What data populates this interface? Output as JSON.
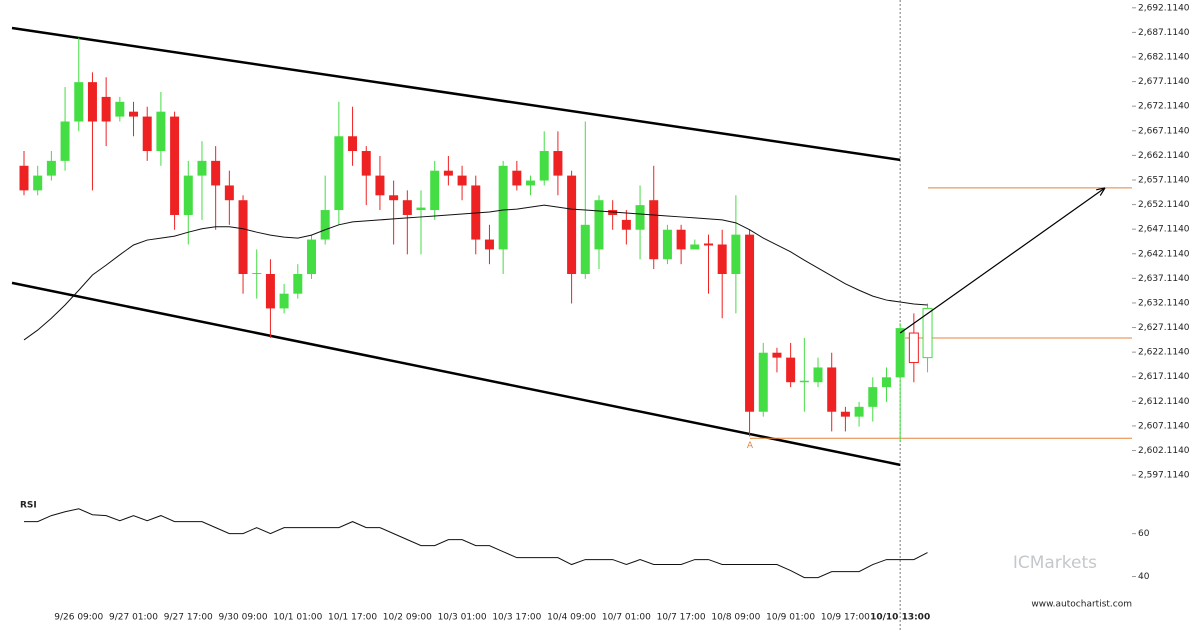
{
  "chart_data": [
    {
      "type": "candlestick",
      "categories": [
        null,
        null,
        null,
        null,
        "9/26 09:00",
        null,
        null,
        null,
        "9/27 01:00",
        null,
        null,
        null,
        "9/27 17:00",
        null,
        null,
        null,
        "9/30 09:00",
        null,
        null,
        null,
        "10/1 01:00",
        null,
        null,
        null,
        "10/1 17:00",
        null,
        null,
        null,
        "10/2 09:00",
        null,
        null,
        null,
        "10/3 01:00",
        null,
        null,
        null,
        "10/3 17:00",
        null,
        null,
        null,
        "10/4 09:00",
        null,
        null,
        null,
        "10/7 01:00",
        null,
        null,
        null,
        "10/7 17:00",
        null,
        null,
        null,
        "10/8 09:00",
        null,
        null,
        null,
        "10/9 01:00",
        null,
        null,
        null,
        "10/9 17:00",
        null,
        null,
        null,
        "10/10 13:00",
        null,
        null
      ],
      "open": [
        2660,
        2655,
        2658,
        2661,
        2669,
        2677,
        2674,
        2670,
        2671,
        2670,
        2663,
        2670,
        2650,
        2658,
        2661,
        2656,
        2653,
        2638,
        2638,
        2631,
        2634,
        2638,
        2645,
        2651,
        2666,
        2663,
        2658,
        2654,
        2653,
        2651,
        2651,
        2659,
        2658,
        2656,
        2645,
        2643,
        2659,
        2656,
        2657,
        2663,
        2658,
        2638,
        2643,
        2651,
        2649,
        2647,
        2653,
        2641,
        2647,
        2643,
        2644.2,
        2644,
        2638,
        2646,
        2610,
        2622,
        2621,
        2616,
        2616,
        2619,
        2610,
        2609,
        2611,
        2615,
        2617,
        2626,
        2621
      ],
      "high": [
        2663,
        2660,
        2663,
        2676,
        2686,
        2679,
        2678,
        2674,
        2673,
        2672,
        2675,
        2671,
        2661,
        2665,
        2664,
        2659,
        2654,
        2643,
        2641,
        2636,
        2640,
        2646,
        2658,
        2673,
        2672,
        2664,
        2662,
        2657,
        2655,
        2655,
        2661,
        2662,
        2660,
        2658,
        2648,
        2661,
        2661,
        2658,
        2667,
        2667,
        2659,
        2669,
        2654,
        2653,
        2651,
        2656,
        2660,
        2648,
        2648,
        2645,
        2646,
        2647,
        2654,
        2647,
        2624,
        2623,
        2624,
        2625,
        2621,
        2622,
        2611,
        2612,
        2617,
        2619,
        2628,
        2630,
        2632
      ],
      "low": [
        2654,
        2654,
        2657,
        2659,
        2667,
        2655,
        2664,
        2669,
        2666,
        2661,
        2660,
        2647,
        2644,
        2649,
        2647,
        2648,
        2634,
        2633,
        2625,
        2630,
        2633,
        2637,
        2644,
        2648,
        2660,
        2652,
        2651,
        2644,
        2642,
        2642,
        2649,
        2656,
        2653,
        2642,
        2640,
        2638,
        2655,
        2654,
        2656,
        2654,
        2632,
        2637,
        2639,
        2647,
        2644,
        2641,
        2639,
        2640,
        2640,
        2643,
        2634,
        2629,
        2630,
        2605,
        2609,
        2618,
        2615,
        2610,
        2615,
        2606,
        2606,
        2607,
        2608,
        2612,
        2604,
        2616,
        2618
      ],
      "close": [
        2655,
        2658,
        2661,
        2669,
        2677,
        2669,
        2669,
        2673,
        2670,
        2663,
        2671,
        2650,
        2658,
        2661,
        2656,
        2653,
        2638,
        2638.2,
        2631,
        2634,
        2638,
        2645,
        2651,
        2666,
        2663,
        2658,
        2654,
        2653,
        2650,
        2651.5,
        2659,
        2658,
        2656,
        2645,
        2643,
        2660,
        2656,
        2657,
        2663,
        2658,
        2638,
        2648,
        2653,
        2650,
        2647,
        2652,
        2641,
        2647,
        2643,
        2644,
        2643.8,
        2638,
        2646,
        2610,
        2622,
        2621,
        2616,
        2616.3,
        2619,
        2610,
        2609,
        2611,
        2615,
        2617,
        2627,
        2620,
        2631
      ],
      "ma": [
        2624.6,
        2626.6,
        2629.0,
        2631.7,
        2634.7,
        2637.8,
        2639.8,
        2641.9,
        2643.9,
        2644.9,
        2645.3,
        2645.7,
        2646.5,
        2647.2,
        2647.6,
        2647.6,
        2647.2,
        2646.5,
        2645.9,
        2645.5,
        2645.3,
        2645.9,
        2647.0,
        2648.0,
        2648.6,
        2648.8,
        2649.0,
        2649.2,
        2649.4,
        2649.6,
        2649.8,
        2650.0,
        2650.2,
        2650.4,
        2650.6,
        2651.0,
        2651.2,
        2651.6,
        2652.0,
        2651.6,
        2651.2,
        2651.0,
        2650.8,
        2650.6,
        2650.4,
        2650.2,
        2650.0,
        2649.8,
        2649.6,
        2649.4,
        2649.2,
        2649.0,
        2648.4,
        2647.0,
        2645.3,
        2643.9,
        2642.5,
        2640.8,
        2639.2,
        2637.6,
        2636.0,
        2634.7,
        2633.5,
        2632.7,
        2632.3,
        2631.9,
        2631.7
      ],
      "up_color": "#44dd44",
      "down_color": "#ee2222",
      "ma_color": "#111111",
      "level_color": "#e8833a",
      "channel": {
        "upper": [
          2688.0,
          2661.2
        ],
        "lower": [
          2636.2,
          2599.2
        ]
      },
      "levels": [
        2655.5,
        2625.0,
        2604.6
      ],
      "arrow": [
        2626.0,
        2655.5
      ],
      "marker": "A",
      "ylim": [
        2594.7,
        2693.7
      ],
      "yticks": [
        {
          "value": 2597.114,
          "label": "2,597.1140"
        },
        {
          "value": 2602.114,
          "label": "2,602.1140"
        },
        {
          "value": 2607.114,
          "label": "2,607.1140"
        },
        {
          "value": 2612.114,
          "label": "2,612.1140"
        },
        {
          "value": 2617.114,
          "label": "2,617.1140"
        },
        {
          "value": 2622.114,
          "label": "2,622.1140"
        },
        {
          "value": 2627.114,
          "label": "2,627.1140"
        },
        {
          "value": 2632.114,
          "label": "2,632.1140"
        },
        {
          "value": 2637.114,
          "label": "2,637.1140"
        },
        {
          "value": 2642.114,
          "label": "2,642.1140"
        },
        {
          "value": 2647.114,
          "label": "2,647.1140"
        },
        {
          "value": 2652.114,
          "label": "2,652.1140"
        },
        {
          "value": 2657.114,
          "label": "2,657.1140"
        },
        {
          "value": 2662.114,
          "label": "2,662.1140"
        },
        {
          "value": 2667.114,
          "label": "2,667.1140"
        },
        {
          "value": 2672.114,
          "label": "2,672.1140"
        },
        {
          "value": 2677.114,
          "label": "2,677.1140"
        },
        {
          "value": 2682.114,
          "label": "2,682.1140"
        },
        {
          "value": 2687.114,
          "label": "2,687.1140"
        },
        {
          "value": 2692.114,
          "label": "2,692.1140"
        }
      ],
      "watermark": "ICMarkets",
      "source": "www.autochartist.com"
    },
    {
      "type": "line",
      "title": "RSI",
      "values": [
        65.6,
        65.6,
        68.4,
        70.2,
        71.6,
        68.8,
        68.4,
        66.0,
        68.4,
        66.0,
        68.4,
        65.6,
        65.6,
        65.6,
        62.8,
        60,
        60,
        62.8,
        60,
        62.8,
        62.8,
        62.8,
        62.8,
        62.8,
        65.6,
        62.8,
        62.8,
        60,
        57.2,
        54.4,
        54.4,
        57.2,
        57.2,
        54.4,
        54.4,
        51.6,
        48.8,
        48.8,
        48.8,
        48.8,
        45.6,
        47.9,
        47.9,
        47.9,
        45.6,
        47.9,
        45.6,
        45.6,
        45.6,
        47.9,
        47.9,
        45.6,
        45.6,
        45.6,
        45.6,
        45.6,
        42.8,
        39.5,
        39.5,
        42.3,
        42.3,
        42.3,
        45.6,
        47.9,
        47.9,
        47.9,
        51.2
      ],
      "color": "#111111",
      "ylim": [
        30,
        78
      ],
      "yticks": [
        40,
        60
      ]
    }
  ]
}
